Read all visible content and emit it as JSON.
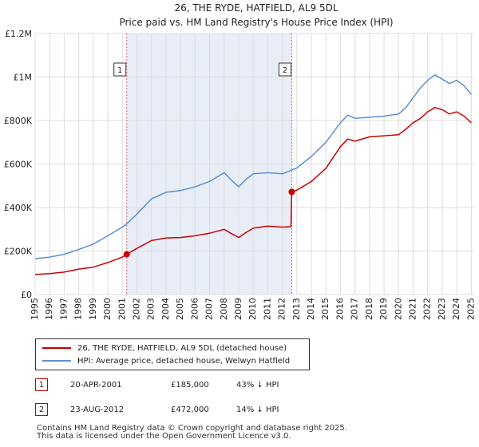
{
  "chart_data": {
    "type": "line",
    "title": "26, THE RYDE, HATFIELD, AL9 5DL",
    "subtitle": "Price paid vs. HM Land Registry's House Price Index (HPI)",
    "xlim": [
      1995,
      2025.2
    ],
    "ylim": [
      0,
      1200000
    ],
    "y_ticks": [
      {
        "value": 0,
        "label": "£0"
      },
      {
        "value": 200000,
        "label": "£200K"
      },
      {
        "value": 400000,
        "label": "£400K"
      },
      {
        "value": 600000,
        "label": "£600K"
      },
      {
        "value": 800000,
        "label": "£800K"
      },
      {
        "value": 1000000,
        "label": "£1M"
      },
      {
        "value": 1200000,
        "label": "£1.2M"
      }
    ],
    "x_ticks": [
      "1995",
      "1996",
      "1997",
      "1998",
      "1999",
      "2000",
      "2001",
      "2002",
      "2003",
      "2004",
      "2005",
      "2006",
      "2007",
      "2008",
      "2009",
      "2010",
      "2011",
      "2012",
      "2013",
      "2014",
      "2015",
      "2016",
      "2017",
      "2018",
      "2019",
      "2020",
      "2021",
      "2022",
      "2023",
      "2024",
      "2025"
    ],
    "shaded_region": [
      2001.3,
      2012.65
    ],
    "series": [
      {
        "name": "26, THE RYDE, HATFIELD, AL9 5DL (detached house)",
        "color": "#cc0000",
        "x": [
          1995.0,
          1996.0,
          1997.0,
          1998.0,
          1999.0,
          2000.0,
          2001.0,
          2001.3,
          2002.0,
          2003.0,
          2004.0,
          2005.0,
          2006.0,
          2007.0,
          2008.0,
          2008.5,
          2009.0,
          2009.5,
          2010.0,
          2011.0,
          2012.0,
          2012.6,
          2012.65,
          2013.0,
          2014.0,
          2015.0,
          2016.0,
          2016.5,
          2017.0,
          2018.0,
          2019.0,
          2020.0,
          2020.5,
          2021.0,
          2021.5,
          2022.0,
          2022.5,
          2023.0,
          2023.5,
          2024.0,
          2024.5,
          2025.0
        ],
        "y": [
          92000,
          96000,
          103000,
          117000,
          126000,
          147000,
          172000,
          185000,
          212000,
          248000,
          260000,
          262000,
          270000,
          282000,
          300000,
          280000,
          262000,
          285000,
          305000,
          315000,
          310000,
          312000,
          472000,
          480000,
          520000,
          580000,
          680000,
          715000,
          705000,
          725000,
          730000,
          735000,
          760000,
          790000,
          810000,
          840000,
          860000,
          850000,
          830000,
          840000,
          820000,
          790000
        ]
      },
      {
        "name": "HPI: Average price, detached house, Welwyn Hatfield",
        "color": "#5b8fd6",
        "x": [
          1995.0,
          1996.0,
          1997.0,
          1998.0,
          1999.0,
          2000.0,
          2001.0,
          2001.3,
          2002.0,
          2003.0,
          2004.0,
          2005.0,
          2006.0,
          2007.0,
          2008.0,
          2008.5,
          2009.0,
          2009.5,
          2010.0,
          2011.0,
          2012.0,
          2012.65,
          2013.0,
          2014.0,
          2015.0,
          2016.0,
          2016.5,
          2017.0,
          2018.0,
          2019.0,
          2020.0,
          2020.5,
          2021.0,
          2021.5,
          2022.0,
          2022.5,
          2023.0,
          2023.5,
          2024.0,
          2024.5,
          2025.0
        ],
        "y": [
          165000,
          172000,
          185000,
          207000,
          232000,
          270000,
          310000,
          325000,
          370000,
          440000,
          470000,
          478000,
          495000,
          520000,
          560000,
          525000,
          495000,
          530000,
          555000,
          560000,
          555000,
          572000,
          582000,
          635000,
          700000,
          790000,
          825000,
          810000,
          815000,
          820000,
          830000,
          860000,
          905000,
          950000,
          985000,
          1010000,
          990000,
          970000,
          985000,
          960000,
          920000
        ]
      }
    ],
    "annotations": [
      {
        "label": "1",
        "x": 2001.3
      },
      {
        "label": "2",
        "x": 2012.65
      }
    ],
    "sale_points": [
      {
        "x": 2001.3,
        "y": 185000
      },
      {
        "x": 2012.65,
        "y": 472000
      }
    ]
  },
  "legend": {
    "items": [
      {
        "label": "26, THE RYDE, HATFIELD, AL9 5DL (detached house)",
        "color": "#cc0000"
      },
      {
        "label": "HPI: Average price, detached house, Welwyn Hatfield",
        "color": "#5b8fd6"
      }
    ]
  },
  "transactions": [
    {
      "num": "1",
      "date": "20-APR-2001",
      "price": "£185,000",
      "relation": "43% ↓ HPI"
    },
    {
      "num": "2",
      "date": "23-AUG-2012",
      "price": "£472,000",
      "relation": "14% ↓ HPI"
    }
  ],
  "footer": {
    "line1": "Contains HM Land Registry data © Crown copyright and database right 2025.",
    "line2": "This data is licensed under the Open Government Licence v3.0."
  }
}
